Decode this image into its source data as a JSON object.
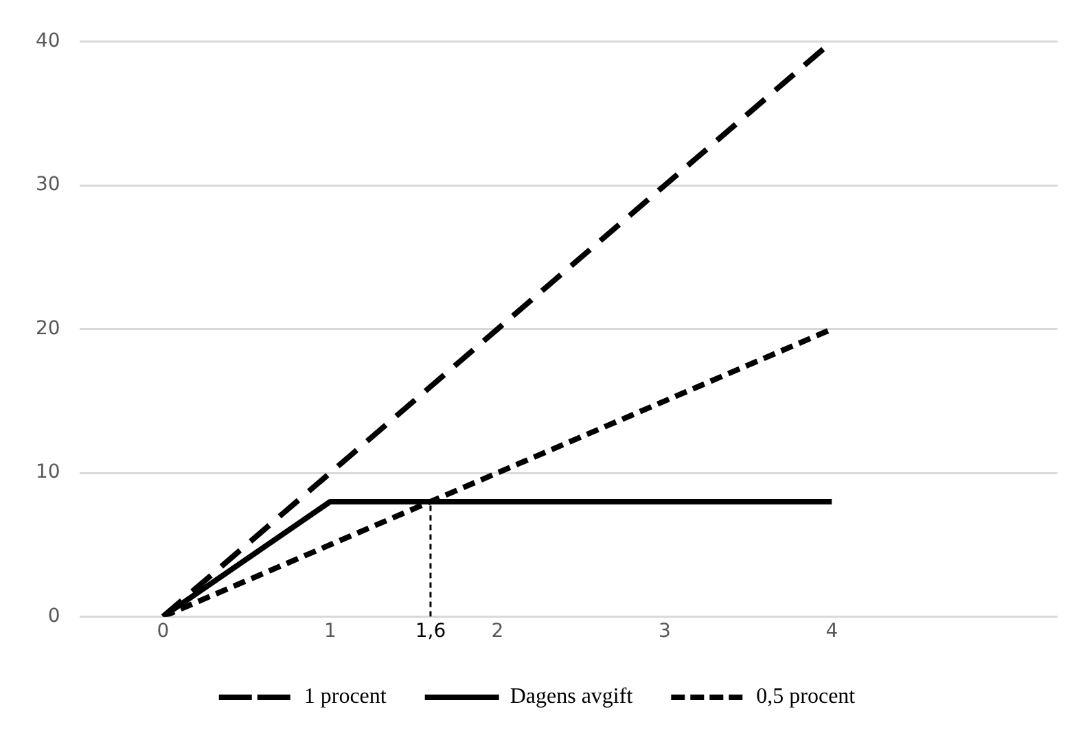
{
  "chart_data": {
    "type": "line",
    "xlim": [
      -0.5,
      5.35
    ],
    "xticks": [
      0,
      1,
      {
        "value": 1.6,
        "label": "1,6"
      },
      2,
      3,
      4
    ],
    "ylim": [
      0,
      40
    ],
    "yticks": [
      0,
      10,
      20,
      30,
      40
    ],
    "grid": "y",
    "legend": "bottom",
    "marker": "none",
    "series": [
      {
        "name": "1 procent",
        "color": "#000000",
        "x": [
          0,
          1,
          2,
          3,
          4
        ],
        "values": [
          0,
          10,
          20,
          30,
          40
        ],
        "line_style": "dashed"
      },
      {
        "name": "Dagens avgift",
        "color": "#000000",
        "x": [
          0,
          1,
          4
        ],
        "values": [
          0,
          8,
          8
        ],
        "line_style": "solid"
      },
      {
        "name": "0,5 procent",
        "color": "#000000",
        "x": [
          0,
          1,
          2,
          3,
          4
        ],
        "values": [
          0,
          5,
          10,
          15,
          20
        ],
        "line_style": "dotted"
      },
      {
        "color": "#000000",
        "x": [
          1.6,
          1.6
        ],
        "values": [
          0,
          8
        ],
        "line_style": "dashed"
      }
    ]
  }
}
